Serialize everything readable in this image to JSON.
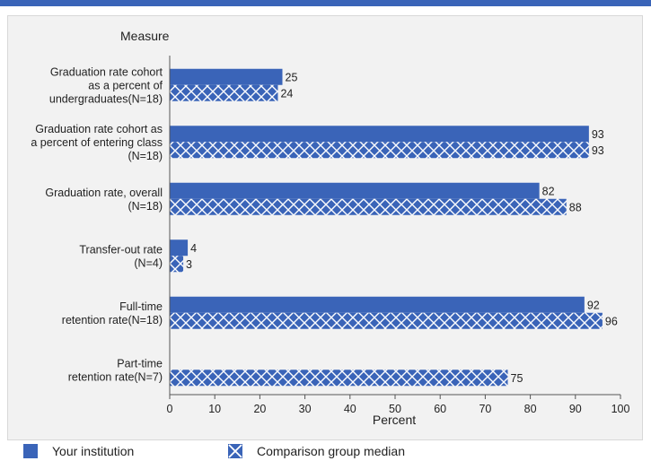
{
  "chart_data": {
    "type": "bar",
    "orientation": "horizontal",
    "y_axis_title": "Measure",
    "xlabel": "Percent",
    "xlim": [
      0,
      100
    ],
    "x_ticks": [
      0,
      10,
      20,
      30,
      40,
      50,
      60,
      70,
      80,
      90,
      100
    ],
    "categories": [
      {
        "lines": [
          "Graduation rate cohort",
          "as a percent of",
          "undergraduates(N=18)"
        ]
      },
      {
        "lines": [
          "Graduation rate cohort as",
          "a percent of entering class",
          "(N=18)"
        ]
      },
      {
        "lines": [
          "Graduation rate, overall",
          "(N=18)"
        ]
      },
      {
        "lines": [
          "Transfer-out rate",
          "(N=4)"
        ]
      },
      {
        "lines": [
          "Full-time",
          "retention rate(N=18)"
        ]
      },
      {
        "lines": [
          "Part-time",
          "retention rate(N=7)"
        ]
      }
    ],
    "series": [
      {
        "name": "Your institution",
        "pattern": "solid",
        "color": "#3a64b8",
        "values": [
          25,
          93,
          82,
          4,
          92,
          null
        ]
      },
      {
        "name": "Comparison group median",
        "pattern": "crosshatch",
        "color": "#3a64b8",
        "values": [
          24,
          93,
          88,
          3,
          96,
          75
        ]
      }
    ],
    "grid": false,
    "legend_position": "bottom"
  }
}
